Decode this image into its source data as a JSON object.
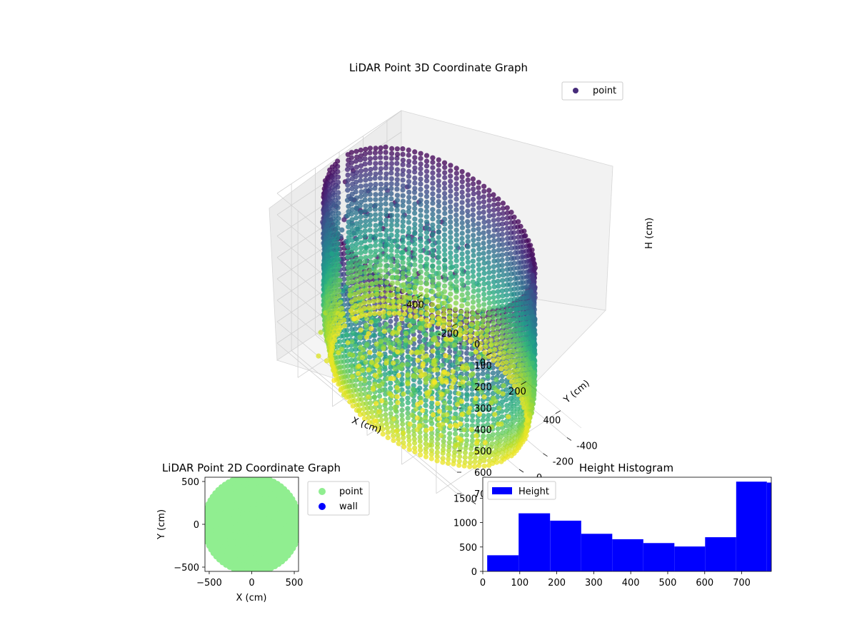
{
  "chart_data": [
    {
      "type": "scatter",
      "projection": "3d",
      "title": "LiDAR Point 3D Coordinate Graph",
      "xlabel": "X (cm)",
      "ylabel": "Y (cm)",
      "zlabel": "H (cm)",
      "x_ticks": [
        "-400",
        "-200",
        "0",
        "200",
        "400"
      ],
      "y_ticks": [
        "-400",
        "-200",
        "0",
        "200",
        "400"
      ],
      "z_ticks": [
        "0",
        "100",
        "200",
        "300",
        "400",
        "500",
        "600",
        "700"
      ],
      "xlim": [
        -520,
        520
      ],
      "ylim": [
        -520,
        520
      ],
      "zlim": [
        0,
        780
      ],
      "z_inverted": true,
      "colormap": "viridis",
      "legend": {
        "placement": "top-right",
        "entries": [
          {
            "label": "point",
            "color": "#472c7a"
          }
        ]
      },
      "series": [
        {
          "name": "point",
          "shape": "cylindrical wall of vertical scan lines, radius about 500 cm, heights 0 to 780 cm, with an interior cluster near the floor"
        }
      ],
      "grid": true
    },
    {
      "type": "scatter",
      "title": "LiDAR Point 2D Coordinate Graph",
      "xlabel": "X (cm)",
      "ylabel": "Y (cm)",
      "x_ticks": [
        "−500",
        "0",
        "500"
      ],
      "y_ticks": [
        "−500",
        "0",
        "500"
      ],
      "xlim": [
        -550,
        550
      ],
      "ylim": [
        -550,
        550
      ],
      "legend": {
        "placement": "outside right",
        "entries": [
          {
            "label": "point",
            "color": "#90ee90"
          },
          {
            "label": "wall",
            "color": "#0000ff"
          }
        ]
      },
      "series": [
        {
          "name": "point",
          "color": "#90ee90",
          "shape": "filled disk of radius about 550 cm, clipped at x = -550"
        },
        {
          "name": "wall",
          "color": "#0000ff",
          "values": []
        }
      ]
    },
    {
      "type": "bar",
      "subtype": "histogram",
      "title": "Height Histogram",
      "bin_edges": [
        12,
        97,
        182,
        266,
        350,
        434,
        518,
        601,
        685,
        768,
        780
      ],
      "values": [
        330,
        1190,
        1040,
        770,
        660,
        580,
        510,
        700,
        1840,
        1820
      ],
      "x_ticks": [
        "0",
        "100",
        "200",
        "300",
        "400",
        "500",
        "600",
        "700"
      ],
      "y_ticks": [
        "0",
        "500",
        "1000",
        "1500"
      ],
      "xlim": [
        0,
        780
      ],
      "ylim": [
        0,
        1930
      ],
      "color": "#0000ff",
      "legend": {
        "placement": "top-left",
        "entries": [
          {
            "label": "Height",
            "color": "#0000ff"
          }
        ]
      },
      "series": [
        {
          "name": "Height",
          "color": "#0000ff"
        }
      ]
    }
  ]
}
